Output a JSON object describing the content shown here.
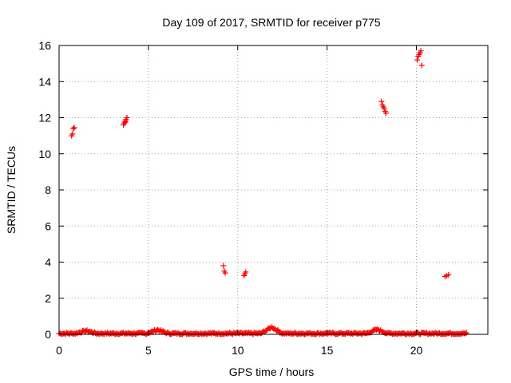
{
  "chart_data": {
    "type": "scatter",
    "title": "Day 109 of 2017, SRMTID for receiver p775",
    "xlabel": "GPS time / hours",
    "ylabel": "SRMTID / TECUs",
    "xlim": [
      0,
      24
    ],
    "ylim": [
      0,
      16
    ],
    "xticks": [
      0,
      5,
      10,
      15,
      20
    ],
    "yticks": [
      0,
      2,
      4,
      6,
      8,
      10,
      12,
      14,
      16
    ],
    "grid": true,
    "marker": "plus",
    "point_color": "#ff0000",
    "baseline": {
      "x_range": [
        0.0,
        22.8
      ],
      "y_approx": 0.05,
      "note_bumps": [
        [
          1.5,
          0.15
        ],
        [
          5.5,
          0.2
        ],
        [
          11.9,
          0.35
        ],
        [
          17.8,
          0.22
        ]
      ]
    },
    "clusters": [
      {
        "x": [
          0.7,
          0.75,
          0.8,
          0.85
        ],
        "y": [
          11.0,
          11.1,
          11.4,
          11.45
        ]
      },
      {
        "x": [
          3.6,
          3.65,
          3.7,
          3.72,
          3.75,
          3.8
        ],
        "y": [
          11.6,
          11.7,
          11.75,
          11.8,
          11.9,
          12.0
        ]
      },
      {
        "x": [
          9.2,
          9.25,
          9.3
        ],
        "y": [
          3.8,
          3.5,
          3.4
        ]
      },
      {
        "x": [
          10.35,
          10.4,
          10.45
        ],
        "y": [
          3.25,
          3.35,
          3.45
        ]
      },
      {
        "x": [
          18.05,
          18.1,
          18.15,
          18.2,
          18.25,
          18.3
        ],
        "y": [
          12.9,
          12.7,
          12.6,
          12.5,
          12.35,
          12.25
        ]
      },
      {
        "x": [
          20.05,
          20.1,
          20.15,
          20.2,
          20.25,
          20.3
        ],
        "y": [
          15.2,
          15.4,
          15.5,
          15.6,
          15.7,
          14.9
        ]
      },
      {
        "x": [
          21.6,
          21.7,
          21.8
        ],
        "y": [
          3.2,
          3.25,
          3.3
        ]
      }
    ]
  }
}
